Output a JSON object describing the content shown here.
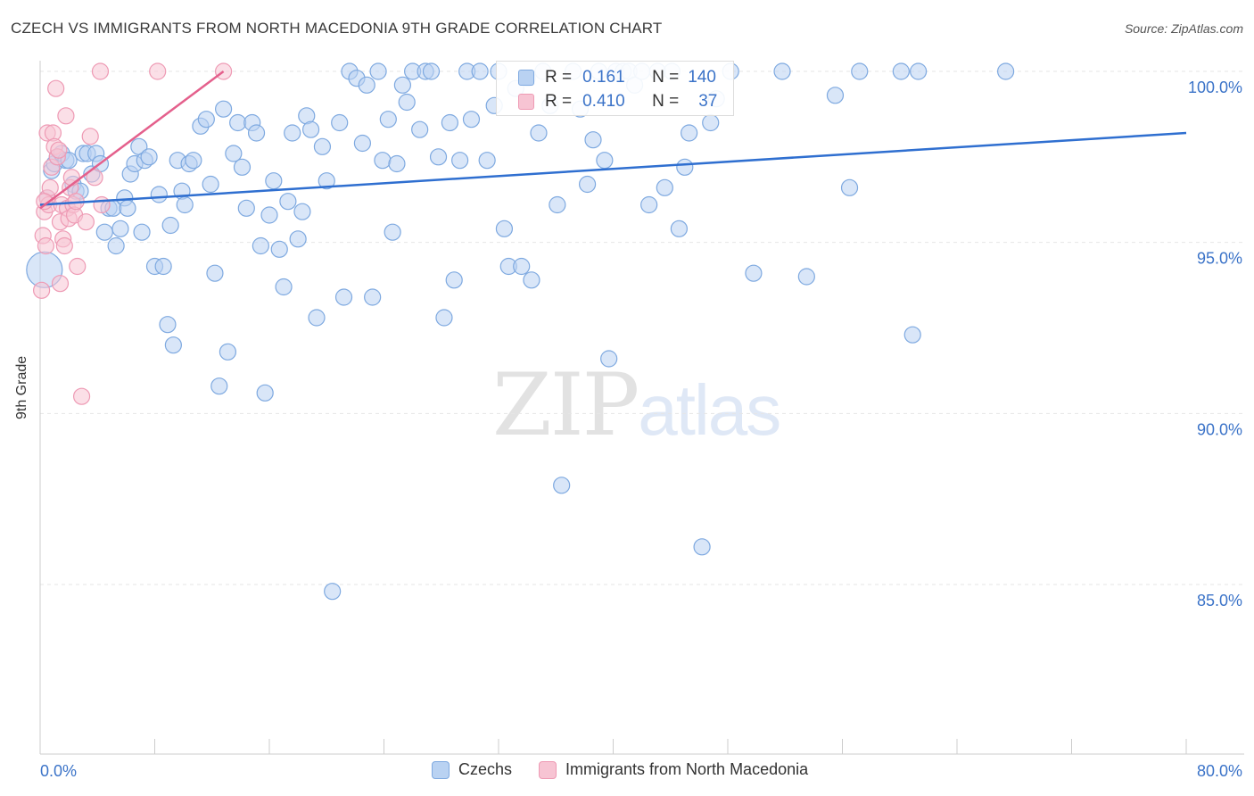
{
  "title": "CZECH VS IMMIGRANTS FROM NORTH MACEDONIA 9TH GRADE CORRELATION CHART",
  "source": "Source: ZipAtlas.com",
  "watermark": {
    "zip": "ZIP",
    "atlas": "atlas"
  },
  "legend_top": {
    "rows": [
      {
        "r_label": "R =",
        "r_value": "0.161",
        "n_label": "N =",
        "n_value": "140"
      },
      {
        "r_label": "R =",
        "r_value": "0.410",
        "n_label": "N =",
        "n_value": "37"
      }
    ]
  },
  "colors": {
    "czech_fill": "#b9d2f2",
    "czech_stroke": "#7ea9e0",
    "czech_line": "#2f6fd0",
    "mac_fill": "#f7c4d3",
    "mac_stroke": "#ee9ab4",
    "mac_line": "#e4608c",
    "axis_label": "#3b73c8",
    "grid": "#e6e6e6"
  },
  "chart_data": {
    "type": "scatter",
    "xlabel": "",
    "ylabel": "9th Grade",
    "xlim": [
      0,
      80
    ],
    "ylim": [
      80.5,
      100.7
    ],
    "x_tick_labels": [
      "0.0%",
      "80.0%"
    ],
    "y_ticks": [
      100,
      95,
      90,
      85
    ],
    "y_tick_labels": [
      "100.0%",
      "95.0%",
      "90.0%",
      "85.0%"
    ],
    "grid": "horizontal dashed",
    "legend_position": "bottom-center",
    "series": [
      {
        "name": "Czechs",
        "trend": {
          "x": [
            0,
            80
          ],
          "y": [
            96.1,
            98.2
          ]
        },
        "points": [
          [
            0.3,
            94.2
          ],
          [
            0.5,
            96.3
          ],
          [
            0.8,
            97.1
          ],
          [
            1.0,
            97.3
          ],
          [
            1.2,
            97.5
          ],
          [
            1.5,
            97.6
          ],
          [
            1.8,
            97.4
          ],
          [
            2.0,
            97.4
          ],
          [
            2.3,
            96.7
          ],
          [
            2.5,
            96.5
          ],
          [
            2.8,
            96.5
          ],
          [
            3.0,
            97.6
          ],
          [
            3.3,
            97.6
          ],
          [
            3.6,
            97.0
          ],
          [
            3.9,
            97.6
          ],
          [
            4.2,
            97.3
          ],
          [
            4.5,
            95.3
          ],
          [
            4.8,
            96.0
          ],
          [
            5.1,
            96.0
          ],
          [
            5.3,
            94.9
          ],
          [
            5.6,
            95.4
          ],
          [
            5.9,
            96.3
          ],
          [
            6.1,
            96.0
          ],
          [
            6.3,
            97.0
          ],
          [
            6.6,
            97.3
          ],
          [
            6.9,
            97.8
          ],
          [
            7.1,
            95.3
          ],
          [
            7.3,
            97.4
          ],
          [
            7.6,
            97.5
          ],
          [
            8.0,
            94.3
          ],
          [
            8.3,
            96.4
          ],
          [
            8.6,
            94.3
          ],
          [
            8.9,
            92.6
          ],
          [
            9.1,
            95.5
          ],
          [
            9.3,
            92.0
          ],
          [
            9.6,
            97.4
          ],
          [
            9.9,
            96.5
          ],
          [
            10.1,
            96.1
          ],
          [
            10.4,
            97.3
          ],
          [
            10.7,
            97.4
          ],
          [
            11.2,
            98.4
          ],
          [
            11.6,
            98.6
          ],
          [
            11.9,
            96.7
          ],
          [
            12.2,
            94.1
          ],
          [
            12.5,
            90.8
          ],
          [
            12.8,
            98.9
          ],
          [
            13.1,
            91.8
          ],
          [
            13.5,
            97.6
          ],
          [
            13.8,
            98.5
          ],
          [
            14.1,
            97.2
          ],
          [
            14.4,
            96.0
          ],
          [
            14.8,
            98.5
          ],
          [
            15.1,
            98.2
          ],
          [
            15.4,
            94.9
          ],
          [
            15.7,
            90.6
          ],
          [
            16.0,
            95.8
          ],
          [
            16.3,
            96.8
          ],
          [
            16.7,
            94.8
          ],
          [
            17.0,
            93.7
          ],
          [
            17.3,
            96.2
          ],
          [
            17.6,
            98.2
          ],
          [
            18.0,
            95.1
          ],
          [
            18.3,
            95.9
          ],
          [
            18.6,
            98.7
          ],
          [
            18.9,
            98.3
          ],
          [
            19.3,
            92.8
          ],
          [
            19.7,
            97.8
          ],
          [
            20.0,
            96.8
          ],
          [
            20.4,
            84.8
          ],
          [
            20.9,
            98.5
          ],
          [
            21.2,
            93.4
          ],
          [
            21.6,
            100.0
          ],
          [
            22.1,
            99.8
          ],
          [
            22.5,
            97.9
          ],
          [
            22.8,
            99.6
          ],
          [
            23.2,
            93.4
          ],
          [
            23.6,
            100.0
          ],
          [
            23.9,
            97.4
          ],
          [
            24.3,
            98.6
          ],
          [
            24.6,
            95.3
          ],
          [
            24.9,
            97.3
          ],
          [
            25.3,
            99.6
          ],
          [
            25.6,
            99.1
          ],
          [
            26.0,
            100.0
          ],
          [
            26.5,
            98.3
          ],
          [
            26.9,
            100.0
          ],
          [
            27.3,
            100.0
          ],
          [
            27.8,
            97.5
          ],
          [
            28.2,
            92.8
          ],
          [
            28.6,
            98.5
          ],
          [
            28.9,
            93.9
          ],
          [
            29.3,
            97.4
          ],
          [
            29.8,
            100.0
          ],
          [
            30.1,
            98.6
          ],
          [
            30.7,
            100.0
          ],
          [
            31.2,
            97.4
          ],
          [
            31.7,
            99.0
          ],
          [
            32.0,
            100.0
          ],
          [
            32.4,
            95.4
          ],
          [
            32.7,
            94.3
          ],
          [
            33.2,
            99.5
          ],
          [
            33.6,
            94.3
          ],
          [
            34.0,
            99.8
          ],
          [
            34.3,
            93.9
          ],
          [
            34.8,
            98.2
          ],
          [
            35.1,
            100.0
          ],
          [
            35.6,
            99.0
          ],
          [
            36.1,
            96.1
          ],
          [
            36.4,
            87.9
          ],
          [
            37.2,
            100.0
          ],
          [
            37.7,
            98.9
          ],
          [
            38.2,
            96.7
          ],
          [
            38.6,
            98.0
          ],
          [
            39.0,
            100.0
          ],
          [
            39.4,
            97.4
          ],
          [
            39.7,
            91.6
          ],
          [
            40.2,
            100.0
          ],
          [
            40.7,
            100.0
          ],
          [
            41.1,
            100.0
          ],
          [
            41.5,
            99.6
          ],
          [
            42.0,
            100.0
          ],
          [
            42.5,
            96.1
          ],
          [
            43.1,
            100.0
          ],
          [
            43.6,
            96.6
          ],
          [
            44.1,
            100.0
          ],
          [
            44.6,
            95.4
          ],
          [
            45.0,
            97.2
          ],
          [
            45.3,
            98.2
          ],
          [
            46.2,
            86.1
          ],
          [
            46.8,
            98.5
          ],
          [
            47.2,
            99.2
          ],
          [
            48.2,
            100.0
          ],
          [
            49.8,
            94.1
          ],
          [
            51.8,
            100.0
          ],
          [
            53.5,
            94.0
          ],
          [
            55.5,
            99.3
          ],
          [
            56.5,
            96.6
          ],
          [
            57.2,
            100.0
          ],
          [
            60.1,
            100.0
          ],
          [
            60.9,
            92.3
          ],
          [
            61.3,
            100.0
          ],
          [
            67.4,
            100.0
          ]
        ]
      },
      {
        "name": "Immigrants from North Macedonia",
        "trend": {
          "x": [
            0,
            12.8
          ],
          "y": [
            96.0,
            100.0
          ]
        },
        "points": [
          [
            0.1,
            93.6
          ],
          [
            0.2,
            95.2
          ],
          [
            0.3,
            95.9
          ],
          [
            0.4,
            94.9
          ],
          [
            0.5,
            96.3
          ],
          [
            0.5,
            98.2
          ],
          [
            0.6,
            96.1
          ],
          [
            0.7,
            96.6
          ],
          [
            0.8,
            97.2
          ],
          [
            0.9,
            98.2
          ],
          [
            1.0,
            97.8
          ],
          [
            1.1,
            99.5
          ],
          [
            1.2,
            97.5
          ],
          [
            1.3,
            97.7
          ],
          [
            1.4,
            93.8
          ],
          [
            1.4,
            95.6
          ],
          [
            1.5,
            96.1
          ],
          [
            1.6,
            95.1
          ],
          [
            1.7,
            94.9
          ],
          [
            1.8,
            98.7
          ],
          [
            1.9,
            96.0
          ],
          [
            2.0,
            95.7
          ],
          [
            2.1,
            96.6
          ],
          [
            2.2,
            96.9
          ],
          [
            2.3,
            96.1
          ],
          [
            2.4,
            95.8
          ],
          [
            2.5,
            96.2
          ],
          [
            2.6,
            94.3
          ],
          [
            2.9,
            90.5
          ],
          [
            3.2,
            95.6
          ],
          [
            3.5,
            98.1
          ],
          [
            3.8,
            96.9
          ],
          [
            4.3,
            96.1
          ],
          [
            4.2,
            100.0
          ],
          [
            8.2,
            100.0
          ],
          [
            12.8,
            100.0
          ],
          [
            0.3,
            96.2
          ]
        ]
      }
    ]
  }
}
